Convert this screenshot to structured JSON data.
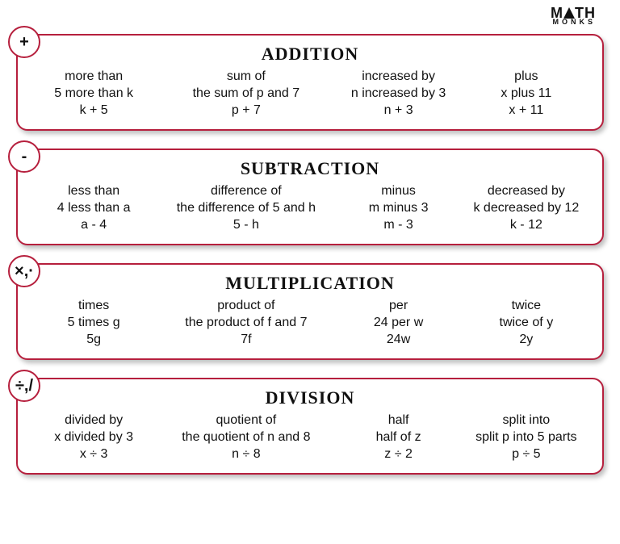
{
  "logo": {
    "line1_a": "M",
    "line1_b": "TH",
    "line2": "MONKS"
  },
  "border_color": "#b61f3d",
  "title_fontsize": 22,
  "body_fontsize": 16,
  "panels": [
    {
      "badge": "+",
      "title": "Addition",
      "cols": [
        {
          "keyword": "more than",
          "example": "5 more than k",
          "expr": "k + 5"
        },
        {
          "keyword": "sum of",
          "example": "the sum of p and 7",
          "expr": "p + 7"
        },
        {
          "keyword": "increased by",
          "example": "n increased by 3",
          "expr": "n + 3"
        },
        {
          "keyword": "plus",
          "example": "x plus 11",
          "expr": "x + 11"
        }
      ]
    },
    {
      "badge": "-",
      "title": "Subtraction",
      "cols": [
        {
          "keyword": "less than",
          "example": "4 less than a",
          "expr": "a - 4"
        },
        {
          "keyword": "difference of",
          "example": "the difference of 5 and h",
          "expr": "5 - h"
        },
        {
          "keyword": "minus",
          "example": "m minus 3",
          "expr": "m - 3"
        },
        {
          "keyword": "decreased by",
          "example": "k decreased by 12",
          "expr": "k - 12"
        }
      ]
    },
    {
      "badge": "×,·",
      "title": "Multiplication",
      "cols": [
        {
          "keyword": "times",
          "example": "5 times g",
          "expr": "5g"
        },
        {
          "keyword": "product of",
          "example": "the product of f and 7",
          "expr": "7f"
        },
        {
          "keyword": "per",
          "example": "24 per w",
          "expr": "24w"
        },
        {
          "keyword": "twice",
          "example": "twice of y",
          "expr": "2y"
        }
      ]
    },
    {
      "badge": "÷,/",
      "title": "Division",
      "cols": [
        {
          "keyword": "divided by",
          "example": "x divided by 3",
          "expr": "x ÷ 3"
        },
        {
          "keyword": "quotient of",
          "example": "the quotient of n and 8",
          "expr": "n ÷ 8"
        },
        {
          "keyword": "half",
          "example": "half of z",
          "expr": "z ÷ 2"
        },
        {
          "keyword": "split into",
          "example": "split p into 5 parts",
          "expr": "p ÷ 5"
        }
      ]
    }
  ]
}
